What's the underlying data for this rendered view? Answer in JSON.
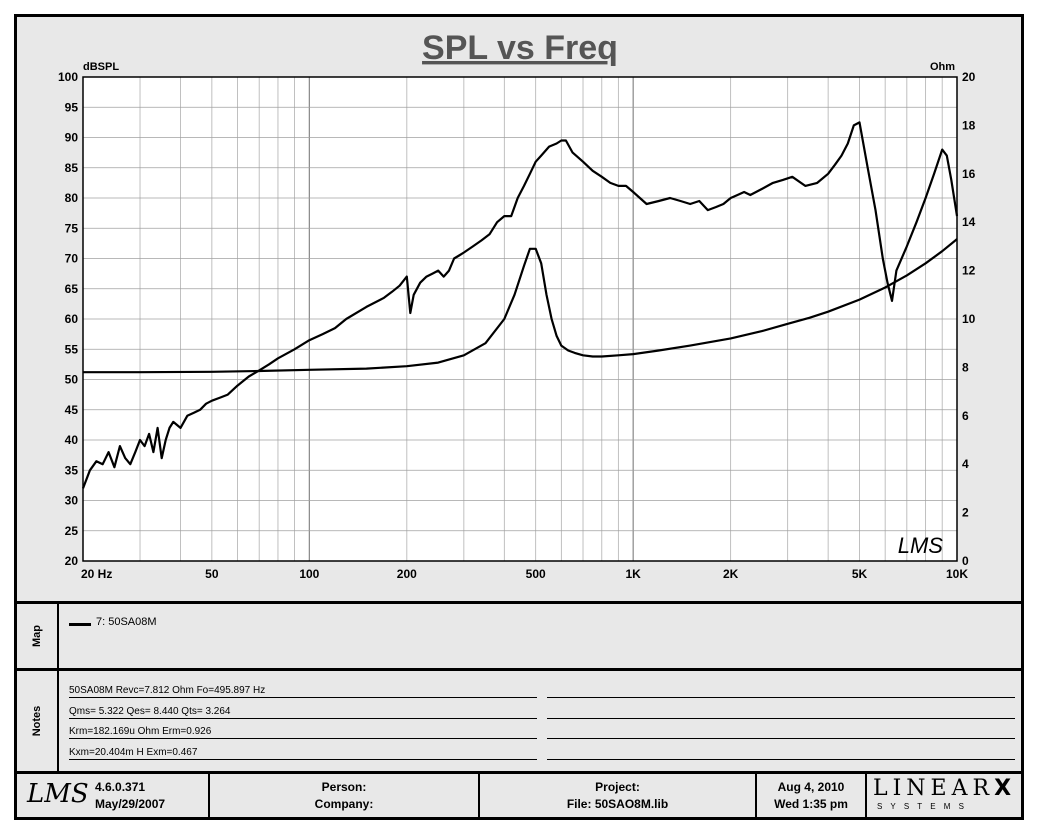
{
  "chart_data": {
    "type": "line",
    "title": "SPL vs Freq",
    "xscale": "log",
    "xlim": [
      20,
      10000
    ],
    "ylim": [
      20,
      100
    ],
    "y2lim": [
      0,
      20
    ],
    "ylabel": "dBSPL",
    "y2label": "Ohm",
    "x_tick_labels": [
      {
        "value": 20,
        "label": "20  Hz"
      },
      {
        "value": 50,
        "label": "50"
      },
      {
        "value": 100,
        "label": "100"
      },
      {
        "value": 200,
        "label": "200"
      },
      {
        "value": 500,
        "label": "500"
      },
      {
        "value": 1000,
        "label": "1K"
      },
      {
        "value": 2000,
        "label": "2K"
      },
      {
        "value": 5000,
        "label": "5K"
      },
      {
        "value": 10000,
        "label": "10K"
      }
    ],
    "y_ticks": [
      20,
      25,
      30,
      35,
      40,
      45,
      50,
      55,
      60,
      65,
      70,
      75,
      80,
      85,
      90,
      95,
      100
    ],
    "y2_ticks": [
      0,
      2,
      4,
      6,
      8,
      10,
      12,
      14,
      16,
      18,
      20
    ],
    "grid": true,
    "watermark": "LMS",
    "series": [
      {
        "name": "7: 50SA08M",
        "axis": "left",
        "x": [
          20,
          21,
          22,
          23,
          24,
          25,
          26,
          27,
          28,
          29,
          30,
          31,
          32,
          33,
          34,
          35,
          36,
          37,
          38,
          40,
          42,
          44,
          46,
          48,
          50,
          53,
          56,
          60,
          65,
          70,
          75,
          80,
          90,
          100,
          110,
          120,
          130,
          150,
          170,
          180,
          190,
          200,
          205,
          210,
          220,
          230,
          240,
          250,
          260,
          270,
          280,
          290,
          300,
          320,
          340,
          360,
          380,
          400,
          420,
          440,
          460,
          480,
          500,
          520,
          550,
          580,
          600,
          620,
          650,
          700,
          750,
          800,
          850,
          900,
          950,
          1000,
          1100,
          1200,
          1300,
          1400,
          1500,
          1600,
          1700,
          1800,
          1900,
          2000,
          2100,
          2200,
          2300,
          2500,
          2700,
          2900,
          3100,
          3400,
          3700,
          4000,
          4200,
          4400,
          4600,
          4800,
          5000,
          5300,
          5600,
          5900,
          6100,
          6300,
          6500,
          7000,
          7500,
          8000,
          8500,
          9000,
          9300,
          9600,
          10000
        ],
        "values": [
          32,
          35,
          36.5,
          36,
          38,
          35.5,
          39,
          37,
          36,
          38,
          40,
          39,
          41,
          38,
          42,
          37,
          40,
          42,
          43,
          42,
          44,
          44.5,
          45,
          46,
          46.5,
          47,
          47.5,
          49,
          50.5,
          51.5,
          52.5,
          53.5,
          55,
          56.5,
          57.5,
          58.5,
          60,
          62,
          63.5,
          64.5,
          65.5,
          67,
          61,
          64,
          66,
          67,
          67.5,
          68,
          67,
          68,
          70,
          70.5,
          71,
          72,
          73,
          74,
          76,
          77,
          77,
          80,
          82,
          84,
          86,
          87,
          88.5,
          89,
          89.5,
          89.5,
          87.5,
          86,
          84.5,
          83.5,
          82.5,
          82,
          82,
          81,
          79,
          79.5,
          80,
          79.5,
          79,
          79.5,
          78,
          78.5,
          79,
          80,
          80.5,
          81,
          80.5,
          81.5,
          82.5,
          83,
          83.5,
          82,
          82.5,
          84,
          85.5,
          87,
          89,
          92,
          92.5,
          85,
          78,
          70,
          66,
          63,
          68,
          72,
          76,
          80,
          84,
          88,
          87,
          83,
          77
        ]
      },
      {
        "name": "",
        "axis": "right",
        "x": [
          20,
          30,
          50,
          70,
          100,
          150,
          200,
          250,
          300,
          350,
          400,
          430,
          460,
          480,
          500,
          520,
          540,
          560,
          580,
          600,
          630,
          660,
          700,
          750,
          800,
          900,
          1000,
          1200,
          1500,
          2000,
          2500,
          3000,
          3500,
          4000,
          5000,
          6000,
          7000,
          8000,
          9000,
          10000
        ],
        "values": [
          7.8,
          7.8,
          7.82,
          7.85,
          7.9,
          7.95,
          8.05,
          8.2,
          8.5,
          9.0,
          10.0,
          11.0,
          12.2,
          12.9,
          12.9,
          12.3,
          11.0,
          10.0,
          9.3,
          8.9,
          8.7,
          8.6,
          8.5,
          8.45,
          8.45,
          8.5,
          8.55,
          8.7,
          8.9,
          9.2,
          9.5,
          9.8,
          10.05,
          10.3,
          10.8,
          11.3,
          11.8,
          12.3,
          12.8,
          13.3
        ]
      }
    ]
  },
  "map": {
    "label": "Map",
    "legend_entry": "7: 50SA08M"
  },
  "notes": {
    "label": "Notes",
    "lines": [
      "50SA08M Revc=7.812 Ohm  Fo=495.897 Hz",
      "Qms= 5.322  Qes= 8.440  Qts= 3.264",
      "Krm=182.169u Ohm  Erm=0.926",
      "Kxm=20.404m H  Exm=0.467"
    ]
  },
  "footer": {
    "logo": "LMS",
    "version": "4.6.0.371",
    "version_date": "May/29/2007",
    "person_label": "Person:",
    "company_label": "Company:",
    "project_label": "Project:",
    "file_label": "File: 50SAO8M.lib",
    "date": "Aug  4, 2010",
    "time": "Wed  1:35 pm",
    "brand": "LINEAR",
    "brand_x": "X",
    "brand_sub": "S Y S T E M S"
  }
}
